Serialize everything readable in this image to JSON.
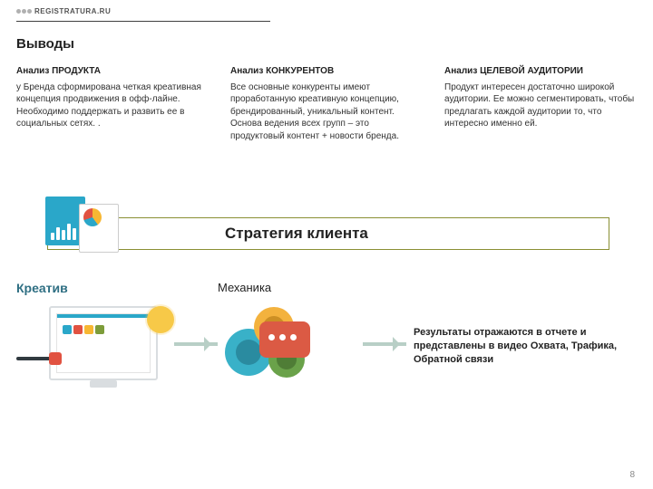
{
  "brand": {
    "name": "REGISTRATURA.RU"
  },
  "title": "Выводы",
  "columns": [
    {
      "heading": "Анализ ПРОДУКТА",
      "body": "у Бренда сформирована четкая креативная концепция продвижения в офф-лайне. Необходимо поддержать и развить ее в социальных сетях. ."
    },
    {
      "heading": "Анализ КОНКУРЕНТОВ",
      "body": "Все основные конкуренты имеют проработанную креативную концепцию, брендированный, уникальный контент. Основа ведения всех групп – это продуктовый контент + новости бренда."
    },
    {
      "heading": "Анализ ЦЕЛЕВОЙ АУДИТОРИИ",
      "body": "Продукт интересен достаточно широкой аудитории. Ее можно сегментировать, чтобы предлагать каждой аудитории то, что интересно именно ей."
    }
  ],
  "strategy": {
    "label": "Стратегия клиента",
    "border_color": "#8a8f33"
  },
  "creative": {
    "label": "Креатив",
    "label_color": "#2f6f83"
  },
  "mechanics": {
    "label": "Механика"
  },
  "results": {
    "text": "Результаты отражаются в отчете и представлены в видео Охвата, Трафика, Обратной связи"
  },
  "page_number": "8",
  "palette": {
    "teal": "#2aa7c9",
    "red": "#e15241",
    "yellow": "#f7b733",
    "green": "#7d9c3a",
    "arrow": "#b8cfc6",
    "text": "#333333",
    "rule": "#3f3f3f"
  }
}
